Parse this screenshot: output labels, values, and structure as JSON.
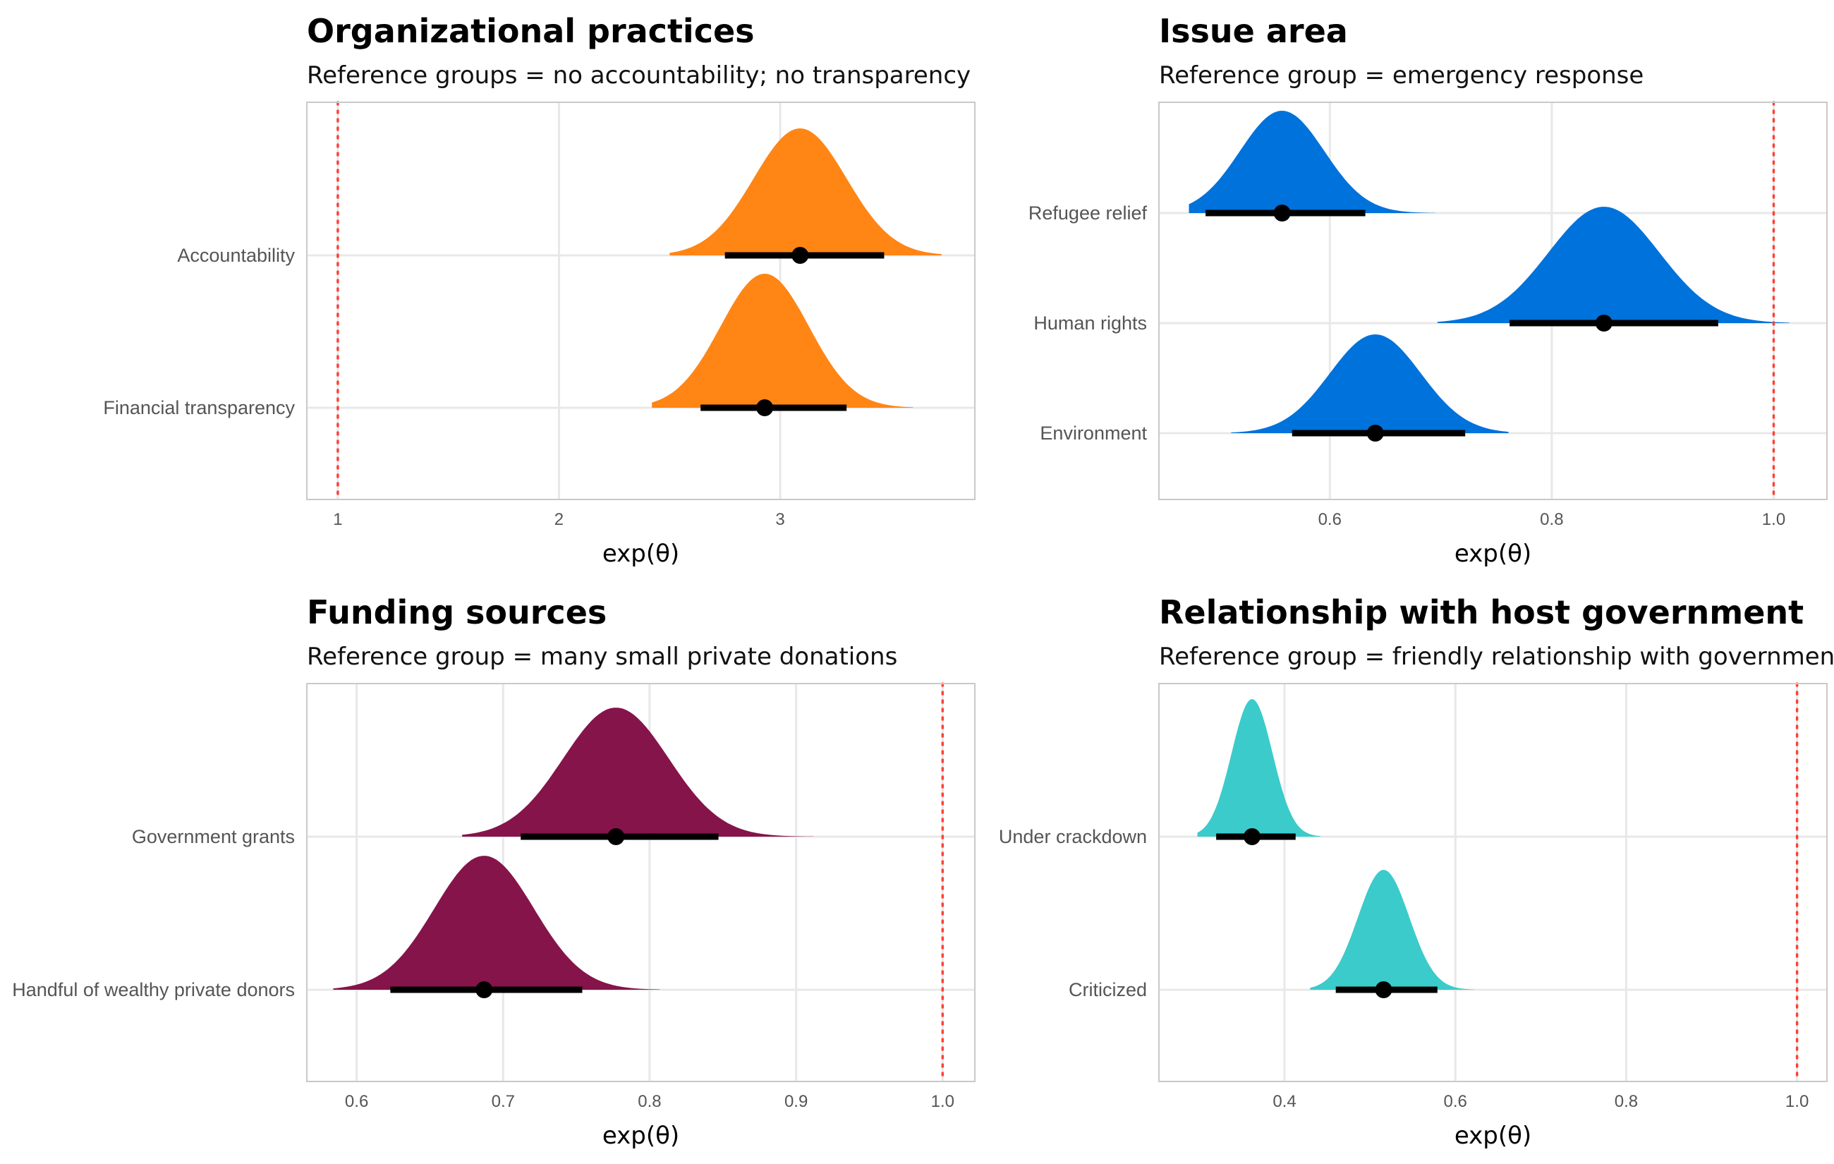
{
  "x_axis_label": "exp(θ)",
  "chart_data": [
    {
      "type": "density",
      "title": "Organizational practices",
      "subtitle": "Reference groups = no accountability; no transparency",
      "xlabel": "exp(θ)",
      "xlim": [
        0.86,
        3.88
      ],
      "xticks": [
        1,
        2,
        3
      ],
      "xtick_labels": [
        "1",
        "2",
        "3"
      ],
      "reference_line": 1,
      "color": "#FF8515",
      "series": [
        {
          "name": "Accountability",
          "median": 3.09,
          "interval": [
            2.75,
            3.47
          ],
          "range": [
            2.5,
            3.73
          ],
          "sd": 0.21
        },
        {
          "name": "Financial transparency",
          "median": 2.93,
          "interval": [
            2.64,
            3.3
          ],
          "range": [
            2.42,
            3.6
          ],
          "sd": 0.2
        }
      ]
    },
    {
      "type": "density",
      "title": "Issue area",
      "subtitle": "Reference group = emergency response",
      "xlabel": "exp(θ)",
      "xlim": [
        0.446,
        1.048
      ],
      "xticks": [
        0.6,
        0.8,
        1.0
      ],
      "xtick_labels": [
        "0.6",
        "0.8",
        "1.0"
      ],
      "reference_line": 1,
      "color": "#0072DB",
      "series": [
        {
          "name": "Refugee relief",
          "median": 0.557,
          "interval": [
            0.488,
            0.632
          ],
          "range": [
            0.473,
            0.695
          ],
          "sd": 0.038
        },
        {
          "name": "Human rights",
          "median": 0.847,
          "interval": [
            0.762,
            0.95
          ],
          "range": [
            0.697,
            1.014
          ],
          "sd": 0.05
        },
        {
          "name": "Environment",
          "median": 0.641,
          "interval": [
            0.566,
            0.722
          ],
          "range": [
            0.511,
            0.761
          ],
          "sd": 0.041
        }
      ]
    },
    {
      "type": "density",
      "title": "Funding sources",
      "subtitle": "Reference group = many small private donations",
      "xlabel": "exp(θ)",
      "xlim": [
        0.566,
        1.022
      ],
      "xticks": [
        0.6,
        0.7,
        0.8,
        0.9,
        1.0
      ],
      "xtick_labels": [
        "0.6",
        "0.7",
        "0.8",
        "0.9",
        "1.0"
      ],
      "reference_line": 1,
      "color": "#85144B",
      "series": [
        {
          "name": "Government grants",
          "median": 0.777,
          "interval": [
            0.712,
            0.847
          ],
          "range": [
            0.672,
            0.912
          ],
          "sd": 0.036
        },
        {
          "name": "Handful of wealthy private donors",
          "median": 0.687,
          "interval": [
            0.623,
            0.754
          ],
          "range": [
            0.584,
            0.807
          ],
          "sd": 0.034
        }
      ]
    },
    {
      "type": "density",
      "title": "Relationship with host government",
      "subtitle": "Reference group = friendly relationship with government",
      "xlabel": "exp(θ)",
      "xlim": [
        0.253,
        1.035
      ],
      "xticks": [
        0.4,
        0.6,
        0.8,
        1.0
      ],
      "xtick_labels": [
        "0.4",
        "0.6",
        "0.8",
        "1.0"
      ],
      "reference_line": 1,
      "color": "#3BCBCB",
      "series": [
        {
          "name": "Under crackdown",
          "median": 0.362,
          "interval": [
            0.32,
            0.413
          ],
          "range": [
            0.298,
            0.442
          ],
          "sd": 0.024
        },
        {
          "name": "Criticized",
          "median": 0.516,
          "interval": [
            0.46,
            0.579
          ],
          "range": [
            0.43,
            0.622
          ],
          "sd": 0.03
        }
      ]
    }
  ]
}
